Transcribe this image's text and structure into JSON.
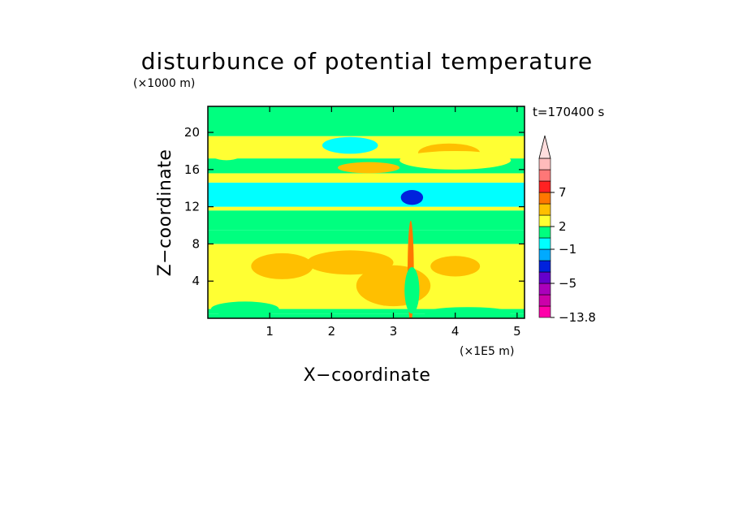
{
  "chart_data": {
    "type": "heatmap",
    "title": "disturbunce of potential temperature",
    "y_unit_label": "(×1000 m)",
    "x_unit_label": "(×1E5 m)",
    "xlabel": "X−coordinate",
    "ylabel": "Z−coordinate",
    "time_label": "t=170400 s",
    "xlim": [
      0,
      5.12
    ],
    "ylim": [
      0,
      22.8
    ],
    "x_ticks": [
      1,
      2,
      3,
      4,
      5
    ],
    "y_ticks": [
      4,
      8,
      12,
      16,
      20
    ],
    "x_tick_labels": [
      "1",
      "2",
      "3",
      "4",
      "5"
    ],
    "y_tick_labels": [
      "4",
      "8",
      "12",
      "16",
      "20"
    ],
    "bands": [
      {
        "z": [
          0.0,
          0.5
        ],
        "color": "#00ff7f"
      },
      {
        "z": [
          0.5,
          1.0
        ],
        "color": "#00ff7f"
      },
      {
        "z": [
          1.0,
          8.0
        ],
        "color": "#ffff33"
      },
      {
        "z": [
          8.0,
          9.5
        ],
        "color": "#00ff7f"
      },
      {
        "z": [
          9.5,
          11.6
        ],
        "color": "#00ff7f"
      },
      {
        "z": [
          11.6,
          12.0
        ],
        "color": "#ffff33"
      },
      {
        "z": [
          12.0,
          14.6
        ],
        "color": "#00ffff"
      },
      {
        "z": [
          14.6,
          15.6
        ],
        "color": "#ffff33"
      },
      {
        "z": [
          15.6,
          17.2
        ],
        "color": "#00ff7f"
      },
      {
        "z": [
          17.2,
          19.6
        ],
        "color": "#ffff33"
      },
      {
        "z": [
          19.6,
          22.8
        ],
        "color": "#00ff7f"
      }
    ],
    "patches": [
      {
        "x": 2.3,
        "z": 18.5,
        "rx": 0.16,
        "rz": 0.45,
        "color": "#0022dd"
      },
      {
        "x": 2.3,
        "z": 18.6,
        "rx": 0.45,
        "rz": 0.9,
        "color": "#00ffff"
      },
      {
        "x": 3.3,
        "z": 13.0,
        "rx": 0.18,
        "rz": 0.8,
        "color": "#0022dd"
      },
      {
        "x": 3.9,
        "z": 17.8,
        "rx": 0.5,
        "rz": 1.0,
        "color": "#ffbf00"
      },
      {
        "x": 4.0,
        "z": 17.0,
        "rx": 0.9,
        "rz": 1.0,
        "color": "#ffff33"
      },
      {
        "x": 0.3,
        "z": 18.0,
        "rx": 0.3,
        "rz": 1.0,
        "color": "#ffff33"
      },
      {
        "x": 2.6,
        "z": 16.2,
        "rx": 0.5,
        "rz": 0.6,
        "color": "#ffbf00"
      },
      {
        "x": 0.6,
        "z": 1.0,
        "rx": 0.55,
        "rz": 0.8,
        "color": "#00ff7f"
      },
      {
        "x": 4.2,
        "z": 0.6,
        "rx": 0.7,
        "rz": 0.6,
        "color": "#00ff7f"
      },
      {
        "x": 1.2,
        "z": 5.6,
        "rx": 0.5,
        "rz": 1.4,
        "color": "#ffbf00"
      },
      {
        "x": 2.3,
        "z": 6.0,
        "rx": 0.7,
        "rz": 1.3,
        "color": "#ffbf00"
      },
      {
        "x": 3.0,
        "z": 3.5,
        "rx": 0.6,
        "rz": 2.2,
        "color": "#ffbf00"
      },
      {
        "x": 4.0,
        "z": 5.6,
        "rx": 0.4,
        "rz": 1.1,
        "color": "#ffbf00"
      },
      {
        "x": 3.28,
        "z": 5.0,
        "rx": 0.05,
        "rz": 5.5,
        "color": "#ff7700"
      },
      {
        "x": 3.3,
        "z": 3.0,
        "rx": 0.12,
        "rz": 2.5,
        "color": "#00ff7f"
      }
    ],
    "colorbar": {
      "levels": [
        {
          "color": "#ff00aa",
          "label": "−13.8"
        },
        {
          "color": "#cc00aa",
          "label": ""
        },
        {
          "color": "#aa00bb",
          "label": ""
        },
        {
          "color": "#6600cc",
          "label": "−5"
        },
        {
          "color": "#0022dd",
          "label": ""
        },
        {
          "color": "#00aaff",
          "label": ""
        },
        {
          "color": "#00ffff",
          "label": "−1"
        },
        {
          "color": "#00ff7f",
          "label": ""
        },
        {
          "color": "#ffff33",
          "label": "2"
        },
        {
          "color": "#ffbf00",
          "label": ""
        },
        {
          "color": "#ff7700",
          "label": ""
        },
        {
          "color": "#ff2222",
          "label": "7"
        },
        {
          "color": "#ff7777",
          "label": ""
        },
        {
          "color": "#ffbbbb",
          "label": ""
        }
      ],
      "overflow_color": "#ffdddd"
    }
  }
}
